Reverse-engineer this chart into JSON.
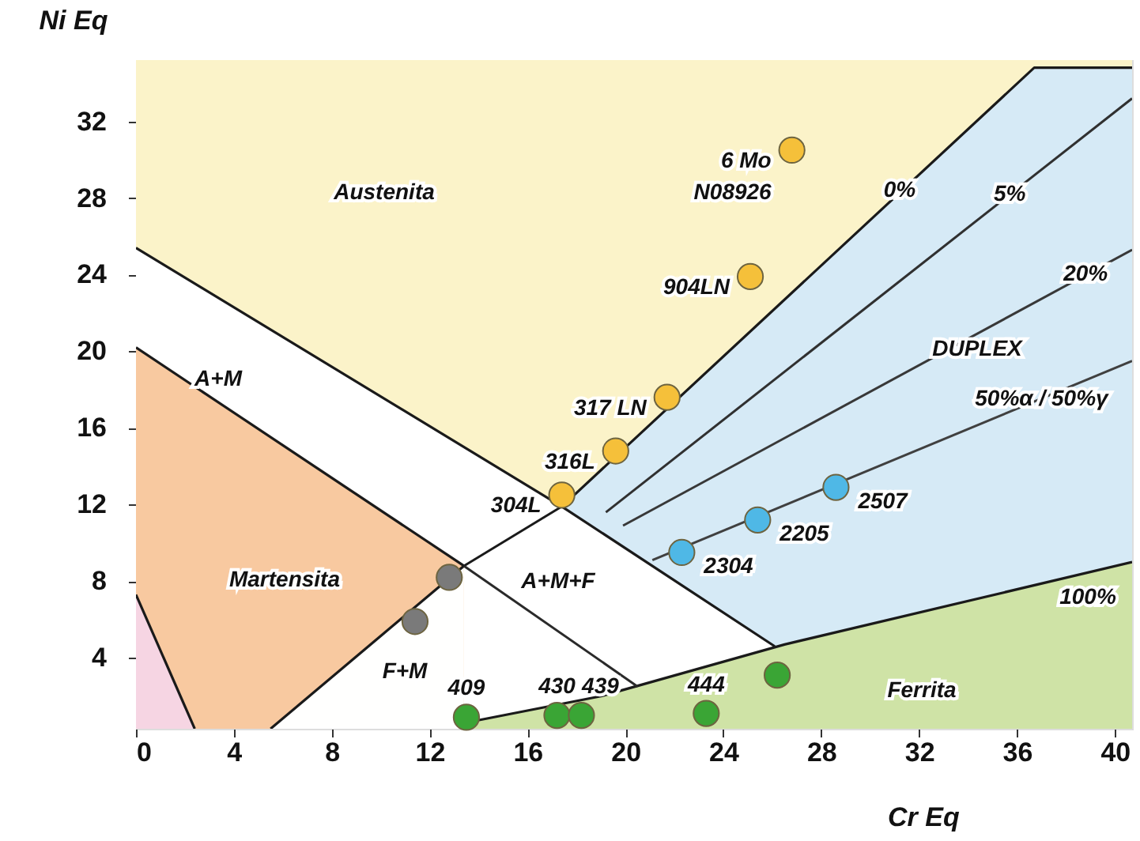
{
  "chart_data": {
    "type": "scatter",
    "xlabel": "Cr Eq",
    "ylabel": "Ni Eq",
    "xlim": [
      0,
      40.7
    ],
    "ylim": [
      0.3,
      35.2
    ],
    "bands": [
      {
        "axis": "x",
        "from": 0,
        "to": 40.7,
        "color": "#fbf3c9"
      }
    ],
    "xticks": [
      0,
      4,
      8,
      12,
      16,
      20,
      24,
      28,
      32,
      36,
      40
    ],
    "yticks": [
      4,
      8,
      12,
      16,
      20,
      24,
      28,
      32
    ],
    "series": [
      {
        "type": "area",
        "color": "#d6eaf6",
        "line_style": "solid",
        "x": [
          17.4,
          36.7,
          40.7
        ],
        "values": [
          11.9,
          34.8,
          34.8
        ]
      },
      {
        "type": "area",
        "color": "#ffffff",
        "line_style": "solid",
        "x": [
          0,
          17.4,
          26.1
        ],
        "values": [
          25.4,
          11.9,
          4.6
        ]
      },
      {
        "type": "area",
        "color": "#f8c9a0",
        "line_style": "solid",
        "x": [
          0,
          13.4
        ],
        "values": [
          20.2,
          8.8
        ]
      },
      {
        "type": "area",
        "color": "#fffffe",
        "line_style": "solid",
        "x": [
          5.5,
          13.4
        ],
        "values": [
          0.3,
          8.8
        ]
      },
      {
        "type": "area",
        "color": "#f6d5e3",
        "line_style": "solid",
        "x": [
          0,
          2.4
        ],
        "values": [
          7.3,
          0.3
        ]
      },
      {
        "type": "area",
        "color": "#cfe3a6",
        "line_style": "solid",
        "x": [
          13.4,
          19,
          26.5,
          40.7
        ],
        "values": [
          0.6,
          2.0,
          4.7,
          9.0
        ]
      },
      {
        "type": "line",
        "color": "#1a1a1a",
        "x": [
          13.4,
          17.4
        ],
        "values": [
          8.8,
          11.9
        ]
      },
      {
        "type": "line",
        "color": "#2a2a2a",
        "x": [
          13.4,
          20.5
        ],
        "values": [
          8.8,
          2.5
        ]
      },
      {
        "type": "line",
        "color": "#303030",
        "x": [
          19.2,
          40.7
        ],
        "values": [
          11.6,
          33.2
        ]
      },
      {
        "type": "line",
        "color": "#383838",
        "x": [
          19.9,
          40.7
        ],
        "values": [
          10.9,
          25.3
        ]
      },
      {
        "type": "line",
        "color": "#404040",
        "x": [
          21.1,
          40.7
        ],
        "values": [
          9.1,
          19.5
        ]
      },
      {
        "color": "#f5c03a",
        "marker": "circle",
        "x": [
          17.4,
          19.6,
          21.7,
          25.1,
          26.8
        ],
        "values": [
          12.5,
          14.8,
          17.6,
          23.9,
          30.5
        ]
      },
      {
        "color": "#4fb8e6",
        "marker": "circle",
        "x": [
          22.3,
          25.4,
          28.6
        ],
        "values": [
          9.5,
          11.2,
          12.9
        ]
      },
      {
        "color": "#7a7a7a",
        "marker": "circle",
        "x": [
          11.4,
          12.8
        ],
        "values": [
          5.9,
          8.2
        ]
      },
      {
        "color": "#3aa535",
        "marker": "circle",
        "x": [
          13.5,
          17.2,
          18.2,
          23.3,
          26.2
        ],
        "values": [
          0.9,
          1.0,
          1.0,
          1.1,
          3.1
        ]
      }
    ],
    "annotations": [
      {
        "text": "304L",
        "x": 17.4,
        "y": 12.5
      },
      {
        "text": "316L",
        "x": 19.6,
        "y": 14.8
      },
      {
        "text": "317 LN",
        "x": 21.7,
        "y": 17.6
      },
      {
        "text": "904LN",
        "x": 25.1,
        "y": 23.9
      },
      {
        "text": "6 Mo",
        "x": 26.8,
        "y": 30.5
      },
      {
        "text": "N08926",
        "x": 26.8,
        "y": 30.5
      },
      {
        "text": "2304",
        "x": 22.3,
        "y": 9.5
      },
      {
        "text": "2205",
        "x": 25.4,
        "y": 11.2
      },
      {
        "text": "2507",
        "x": 28.6,
        "y": 12.9
      },
      {
        "text": "409",
        "x": 13.5,
        "y": 0.9
      },
      {
        "text": "430",
        "x": 17.2,
        "y": 1.0
      },
      {
        "text": "439",
        "x": 18.2,
        "y": 1.0
      },
      {
        "text": "444",
        "x": 23.3,
        "y": 1.1
      },
      {
        "text": "0%",
        "x": 31.2,
        "y": 28.4
      },
      {
        "text": "5%",
        "x": 35.7,
        "y": 28.2
      },
      {
        "text": "20%",
        "x": 38.8,
        "y": 24.0
      },
      {
        "text": "50%α / 50%γ",
        "x": 37.0,
        "y": 17.5
      },
      "Austenita",
      "Martensita",
      "Ferrita",
      "DUPLEX",
      "A+M",
      "A+M+F",
      "F+M",
      "100%"
    ]
  }
}
